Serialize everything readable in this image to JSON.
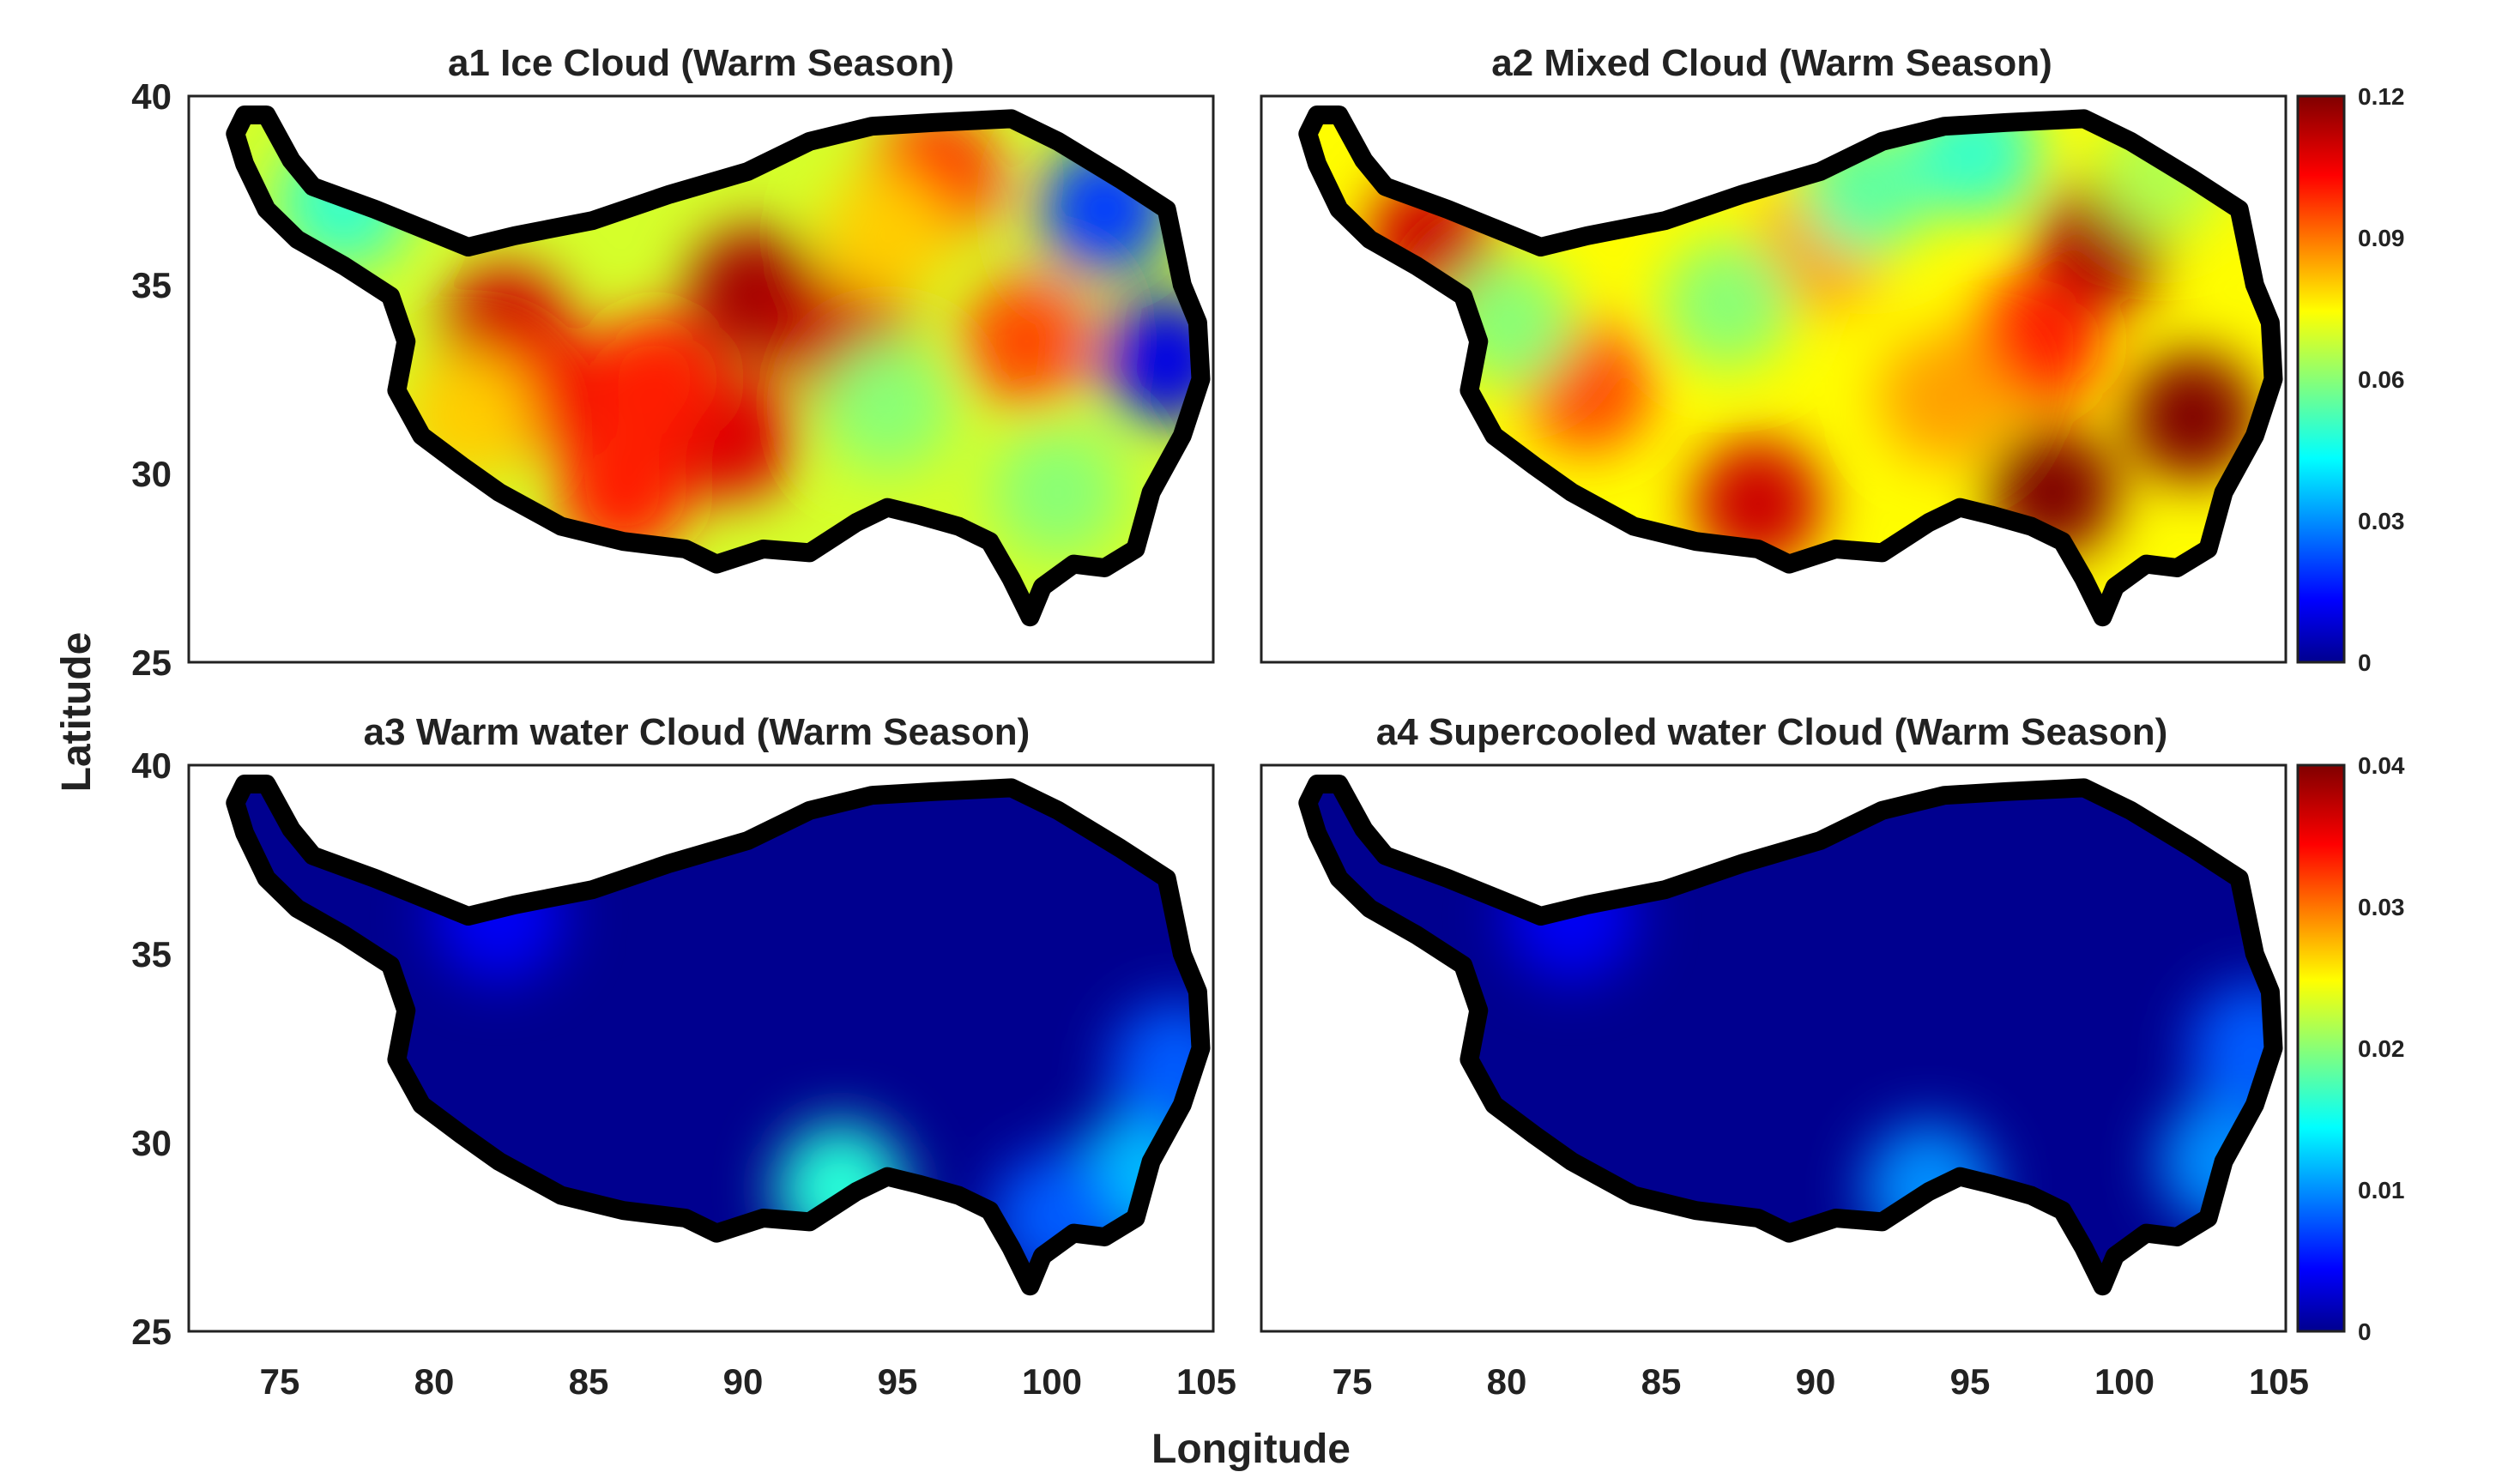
{
  "chart_data": {
    "type": "heatmap",
    "xlabel": "Longitude",
    "ylabel": "Latitude",
    "xlim": [
      72,
      105
    ],
    "ylim": [
      25,
      40
    ],
    "xticks": [
      "75",
      "80",
      "85",
      "90",
      "95",
      "100",
      "105"
    ],
    "yticks": [
      "25",
      "30",
      "35",
      "40"
    ],
    "panels": [
      {
        "id": "a1",
        "title": "a1 Ice Cloud (Warm Season)",
        "colorbar": "top",
        "hotspots": [
          {
            "lon": 90.2,
            "lat": 34.8,
            "value": 0.115
          },
          {
            "lon": 89.5,
            "lat": 31.0,
            "value": 0.108
          },
          {
            "lon": 93.2,
            "lat": 33.5,
            "value": 0.11
          },
          {
            "lon": 82.2,
            "lat": 33.8,
            "value": 0.11
          },
          {
            "lon": 83.5,
            "lat": 32.2,
            "value": 0.105
          },
          {
            "lon": 87.0,
            "lat": 32.5,
            "value": 0.1
          },
          {
            "lon": 96.0,
            "lat": 37.8,
            "value": 0.1
          },
          {
            "lon": 99.0,
            "lat": 33.5,
            "value": 0.095
          },
          {
            "lon": 86.0,
            "lat": 29.5,
            "value": 0.1
          },
          {
            "lon": 94.5,
            "lat": 36.3,
            "value": 0.08
          },
          {
            "lon": 94.5,
            "lat": 31.8,
            "value": 0.06
          },
          {
            "lon": 77.0,
            "lat": 37.2,
            "value": 0.05
          },
          {
            "lon": 103.5,
            "lat": 33.0,
            "value": 0.01
          },
          {
            "lon": 101.5,
            "lat": 37.0,
            "value": 0.02
          },
          {
            "lon": 100.0,
            "lat": 29.5,
            "value": 0.06
          },
          {
            "lon": 81.0,
            "lat": 31.5,
            "value": 0.08
          }
        ]
      },
      {
        "id": "a2",
        "title": "a2 Mixed Cloud (Warm Season)",
        "colorbar": "top",
        "hotspots": [
          {
            "lon": 102.0,
            "lat": 31.5,
            "value": 0.12
          },
          {
            "lon": 97.5,
            "lat": 29.5,
            "value": 0.12
          },
          {
            "lon": 99.0,
            "lat": 36.0,
            "value": 0.115
          },
          {
            "lon": 97.0,
            "lat": 33.5,
            "value": 0.1
          },
          {
            "lon": 88.0,
            "lat": 29.2,
            "value": 0.11
          },
          {
            "lon": 77.5,
            "lat": 36.2,
            "value": 0.11
          },
          {
            "lon": 82.5,
            "lat": 32.3,
            "value": 0.095
          },
          {
            "lon": 90.0,
            "lat": 36.0,
            "value": 0.085
          },
          {
            "lon": 94.0,
            "lat": 32.0,
            "value": 0.085
          },
          {
            "lon": 87.0,
            "lat": 34.5,
            "value": 0.06
          },
          {
            "lon": 80.0,
            "lat": 34.0,
            "value": 0.06
          },
          {
            "lon": 91.5,
            "lat": 37.5,
            "value": 0.055
          },
          {
            "lon": 95.0,
            "lat": 38.5,
            "value": 0.05
          },
          {
            "lon": 101.0,
            "lat": 38.0,
            "value": 0.065
          }
        ]
      },
      {
        "id": "a3",
        "title": "a3 Warm water Cloud (Warm Season)",
        "colorbar": "bottom",
        "hotspots": [
          {
            "lon": 93.0,
            "lat": 28.8,
            "value": 0.016
          },
          {
            "lon": 102.5,
            "lat": 29.0,
            "value": 0.012
          },
          {
            "lon": 103.8,
            "lat": 32.0,
            "value": 0.008
          },
          {
            "lon": 100.0,
            "lat": 28.0,
            "value": 0.008
          },
          {
            "lon": 82.0,
            "lat": 36.0,
            "value": 0.004
          }
        ]
      },
      {
        "id": "a4",
        "title": "a4 Supercooled water Cloud (Warm Season)",
        "colorbar": "bottom",
        "hotspots": [
          {
            "lon": 93.5,
            "lat": 28.8,
            "value": 0.01
          },
          {
            "lon": 103.0,
            "lat": 29.5,
            "value": 0.01
          },
          {
            "lon": 104.0,
            "lat": 32.5,
            "value": 0.008
          },
          {
            "lon": 82.0,
            "lat": 36.0,
            "value": 0.004
          }
        ]
      }
    ],
    "colorbars": {
      "top": {
        "range": [
          0,
          0.12
        ],
        "ticks": [
          "0",
          "0.03",
          "0.06",
          "0.09",
          "0.12"
        ]
      },
      "bottom": {
        "range": [
          0,
          0.04
        ],
        "ticks": [
          "0",
          "0.01",
          "0.02",
          "0.03",
          "0.04"
        ]
      }
    },
    "outline_lonlat": [
      [
        73.8,
        39.5
      ],
      [
        74.5,
        39.5
      ],
      [
        75.3,
        38.3
      ],
      [
        76.0,
        37.6
      ],
      [
        78.0,
        37.0
      ],
      [
        79.5,
        36.5
      ],
      [
        81.0,
        36.0
      ],
      [
        82.5,
        36.3
      ],
      [
        85.0,
        36.7
      ],
      [
        87.5,
        37.4
      ],
      [
        90.0,
        38.0
      ],
      [
        92.0,
        38.8
      ],
      [
        94.0,
        39.2
      ],
      [
        96.0,
        39.3
      ],
      [
        98.5,
        39.4
      ],
      [
        100.0,
        38.8
      ],
      [
        102.0,
        37.8
      ],
      [
        103.5,
        37.0
      ],
      [
        104.0,
        35.0
      ],
      [
        104.5,
        34.0
      ],
      [
        104.6,
        32.5
      ],
      [
        104.0,
        31.0
      ],
      [
        103.0,
        29.5
      ],
      [
        102.5,
        28.0
      ],
      [
        101.5,
        27.5
      ],
      [
        100.5,
        27.6
      ],
      [
        99.5,
        27.0
      ],
      [
        99.1,
        26.2
      ],
      [
        98.5,
        27.2
      ],
      [
        97.8,
        28.2
      ],
      [
        96.8,
        28.6
      ],
      [
        95.5,
        28.9
      ],
      [
        94.5,
        29.1
      ],
      [
        93.5,
        28.7
      ],
      [
        92.0,
        27.9
      ],
      [
        90.5,
        28.0
      ],
      [
        89.0,
        27.6
      ],
      [
        88.0,
        28.0
      ],
      [
        86.0,
        28.2
      ],
      [
        84.0,
        28.6
      ],
      [
        82.0,
        29.5
      ],
      [
        80.8,
        30.2
      ],
      [
        79.5,
        31.0
      ],
      [
        78.7,
        32.2
      ],
      [
        79.0,
        33.5
      ],
      [
        78.5,
        34.7
      ],
      [
        77.0,
        35.5
      ],
      [
        75.5,
        36.2
      ],
      [
        74.5,
        37.0
      ],
      [
        73.8,
        38.2
      ],
      [
        73.5,
        39.0
      ]
    ]
  }
}
